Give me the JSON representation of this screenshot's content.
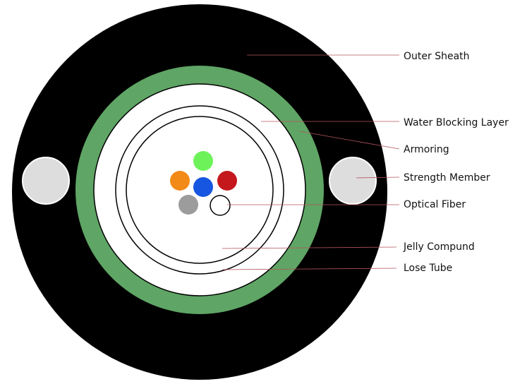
{
  "labels": [
    "Outer Sheath",
    "Water Blocking Layer",
    "Armoring",
    "Strength Member",
    "Optical Fiber",
    "Jelly Compund",
    "Lose Tube"
  ]
}
